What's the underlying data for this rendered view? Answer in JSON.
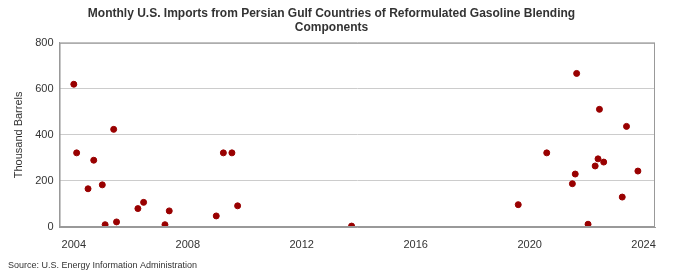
{
  "chart_data": {
    "type": "scatter",
    "title": "Monthly U.S. Imports from Persian Gulf Countries of Reformulated Gasoline Blending Components",
    "y_label": "Thousand Barrels",
    "source": "Source: U.S. Energy Information Administration",
    "x": [
      2004.0,
      2004.1,
      2004.5,
      2004.7,
      2005.0,
      2005.1,
      2005.4,
      2005.5,
      2006.25,
      2006.45,
      2007.2,
      2007.35,
      2009.0,
      2009.25,
      2009.55,
      2009.75,
      2013.75,
      2019.6,
      2020.6,
      2021.5,
      2021.6,
      2021.65,
      2022.05,
      2022.3,
      2022.4,
      2022.45,
      2022.6,
      2023.25,
      2023.4,
      2023.8
    ],
    "values": [
      620,
      322,
      166,
      290,
      183,
      10,
      424,
      22,
      80,
      107,
      10,
      70,
      48,
      322,
      322,
      92,
      4,
      97,
      322,
      188,
      230,
      667,
      12,
      265,
      296,
      511,
      282,
      130,
      437,
      243
    ],
    "color": "#990000",
    "marker": "circle",
    "xlim": [
      2003.5,
      2024.4
    ],
    "xticks": [
      2004,
      2008,
      2012,
      2016,
      2020,
      2024
    ],
    "ylim": [
      0,
      800
    ],
    "yticks": [
      0,
      200,
      400,
      600,
      800
    ],
    "grid": true
  }
}
